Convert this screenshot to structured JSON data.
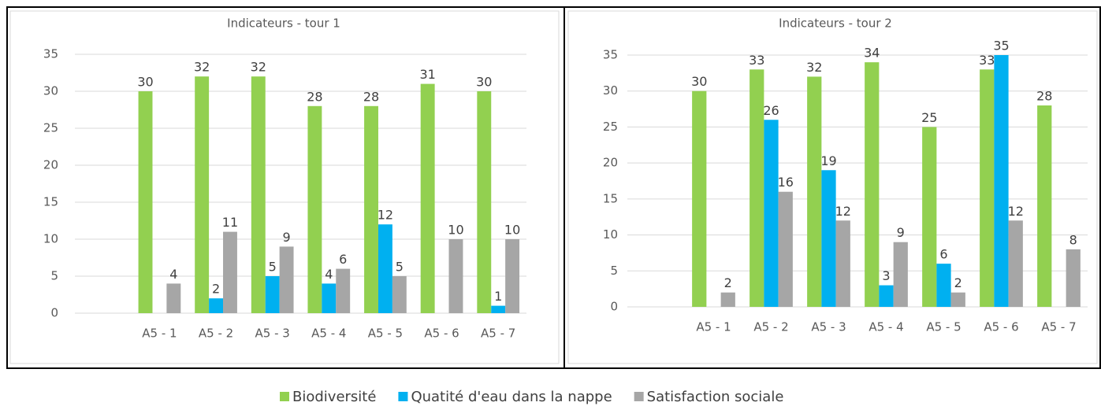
{
  "chart_data": [
    {
      "type": "bar",
      "title": "Indicateurs - tour 1",
      "categories": [
        null,
        "A5 - 1",
        "A5 - 2",
        "A5 - 3",
        "A5 - 4",
        "A5 - 5",
        "A5 - 6",
        "A5 - 7"
      ],
      "series": [
        {
          "name": "Biodiversité",
          "color": "#92d050",
          "values": [
            null,
            30,
            32,
            32,
            28,
            28,
            31,
            30
          ]
        },
        {
          "name": "Quatité d'eau dans la nappe",
          "color": "#00b0f0",
          "values": [
            null,
            null,
            2,
            5,
            4,
            12,
            null,
            1
          ]
        },
        {
          "name": "Satisfaction sociale",
          "color": "#a6a6a6",
          "values": [
            null,
            4,
            11,
            9,
            6,
            5,
            10,
            10
          ]
        }
      ],
      "ylim": [
        0,
        35
      ],
      "yticks": [
        0,
        5,
        10,
        15,
        20,
        25,
        30,
        35
      ],
      "grid": true
    },
    {
      "type": "bar",
      "title": "Indicateurs - tour 2",
      "categories": [
        null,
        "A5 - 1",
        "A5 - 2",
        "A5 - 3",
        "A5 - 4",
        "A5 - 5",
        "A5 - 6",
        "A5 - 7"
      ],
      "series": [
        {
          "color": "#92d050",
          "values": [
            null,
            30,
            33,
            32,
            34,
            25,
            33,
            28
          ]
        },
        {
          "color": "#00b0f0",
          "values": [
            null,
            null,
            26,
            19,
            3,
            6,
            35,
            null
          ]
        },
        {
          "color": "#a6a6a6",
          "values": [
            null,
            2,
            16,
            12,
            9,
            2,
            12,
            8
          ]
        }
      ],
      "ylim": [
        0,
        35
      ],
      "yticks": [
        0,
        5,
        10,
        15,
        20,
        25,
        30,
        35
      ],
      "grid": true
    }
  ]
}
